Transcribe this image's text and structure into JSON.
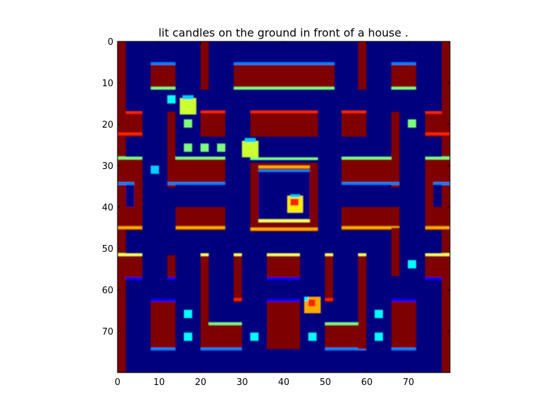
{
  "chart_data": {
    "type": "heatmap",
    "title": "lit candles on the ground in front of a house .",
    "xlabel": "",
    "ylabel": "",
    "xlim": [
      0,
      80
    ],
    "ylim": [
      80,
      0
    ],
    "x_ticks": [
      0,
      10,
      20,
      30,
      40,
      50,
      60,
      70
    ],
    "y_ticks": [
      0,
      10,
      20,
      30,
      40,
      50,
      60,
      70
    ],
    "grid": false,
    "colormap": "jet",
    "background_color": "#00007f"
  }
}
